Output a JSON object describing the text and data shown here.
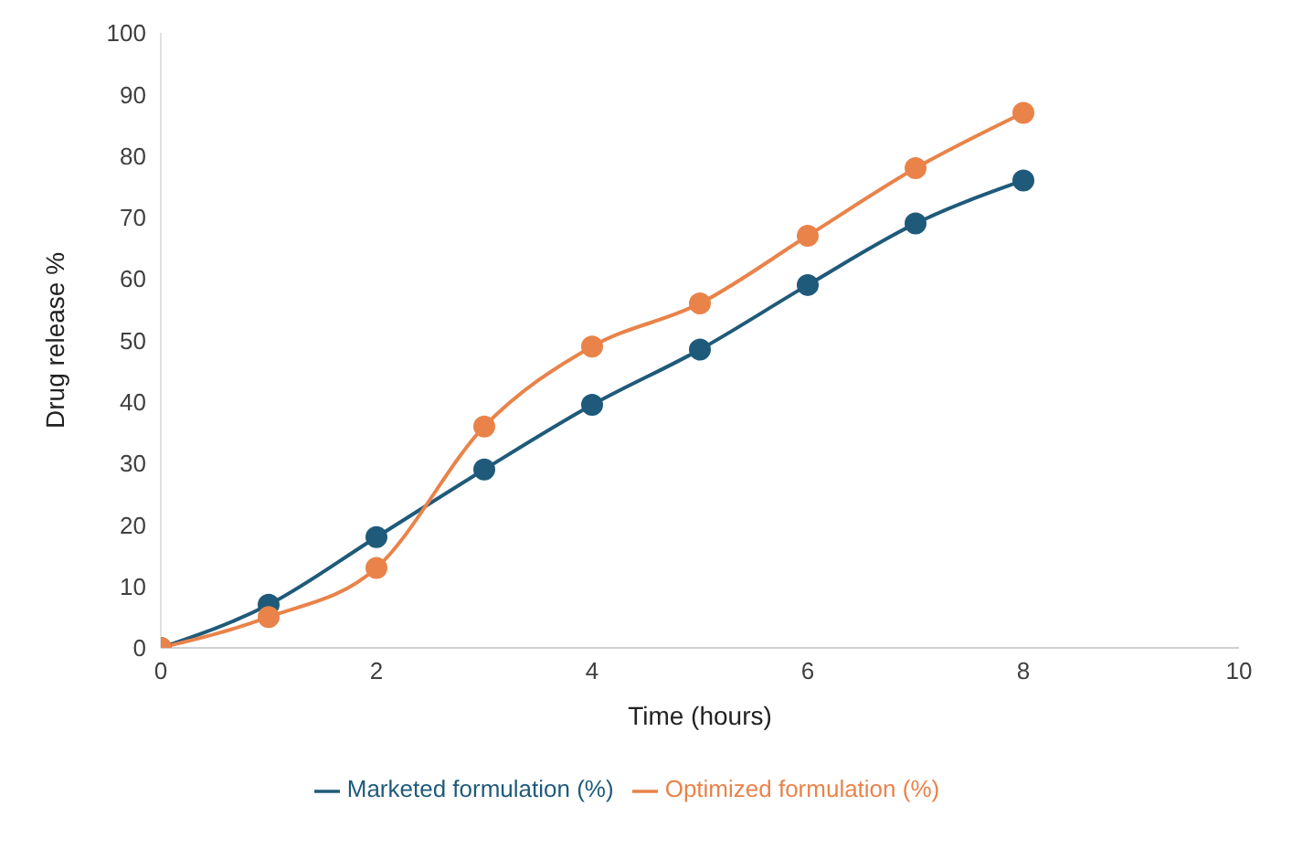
{
  "chart_data": {
    "type": "line",
    "xlabel": "Time (hours)",
    "ylabel": "Drug release %",
    "x": [
      0,
      1,
      2,
      3,
      4,
      5,
      6,
      7,
      8
    ],
    "xlim": [
      0,
      10
    ],
    "xticks": [
      0,
      2,
      4,
      6,
      8,
      10
    ],
    "ylim": [
      0,
      100
    ],
    "yticks": [
      0,
      10,
      20,
      30,
      40,
      50,
      60,
      70,
      80,
      90,
      100
    ],
    "grid": false,
    "legend": "bottom",
    "marker": "circle",
    "series": [
      {
        "name": "Marketed formulation (%)",
        "color": "#1f5a7a",
        "values": [
          0,
          7,
          18,
          29,
          39.5,
          48.5,
          59,
          69,
          76
        ]
      },
      {
        "name": "Optimized formulation (%)",
        "color": "#e9834a",
        "values": [
          0,
          5,
          13,
          36,
          49,
          56,
          67,
          78,
          87
        ]
      }
    ]
  }
}
